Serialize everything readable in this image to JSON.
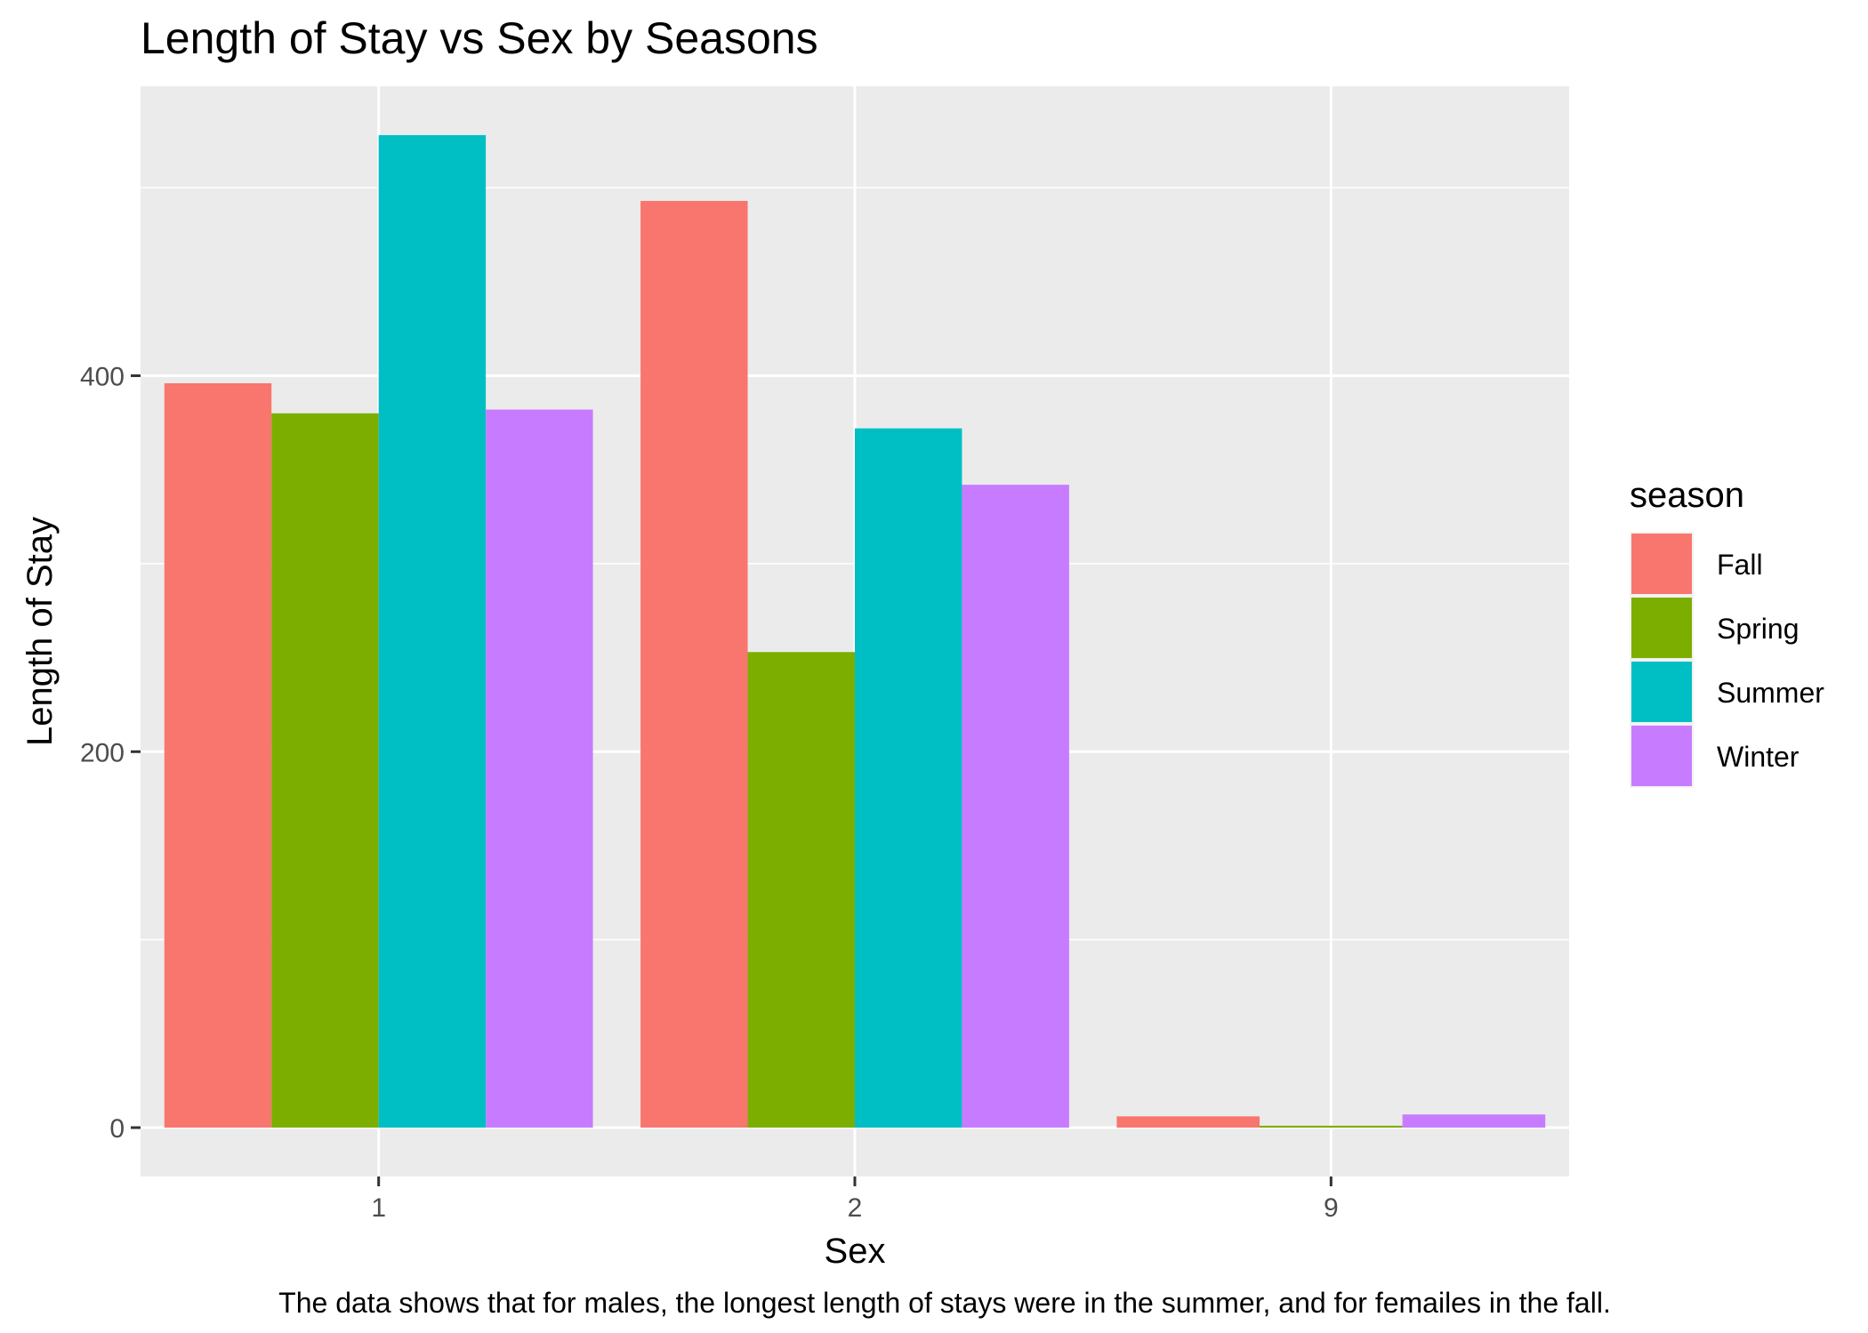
{
  "chart_data": {
    "type": "bar",
    "title": "Length of Stay vs Sex by Seasons",
    "xlabel": "Sex",
    "ylabel": "Length of Stay",
    "caption": "The data shows that for males, the longest length of stays were in the summer, and for femailes in the fall.",
    "categories": [
      "1",
      "2",
      "9"
    ],
    "series": [
      {
        "name": "Fall",
        "color": "#F8766D",
        "values": [
          396,
          493,
          6
        ]
      },
      {
        "name": "Spring",
        "color": "#7CAE00",
        "values": [
          380,
          253,
          1
        ]
      },
      {
        "name": "Summer",
        "color": "#00BFC4",
        "values": [
          528,
          372,
          null
        ]
      },
      {
        "name": "Winter",
        "color": "#C77CFF",
        "values": [
          382,
          342,
          7
        ]
      }
    ],
    "ylim": [
      -26,
      554
    ],
    "yticks": [
      0,
      200,
      400
    ],
    "legend": {
      "title": "season",
      "position": "right"
    },
    "grid": true,
    "panel_background": "#EBEBEB"
  }
}
